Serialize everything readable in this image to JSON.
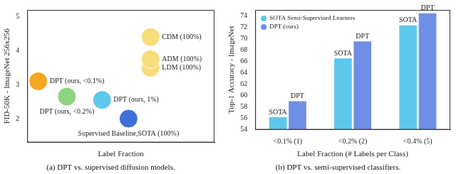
{
  "chart_data": [
    {
      "type": "scatter",
      "caption": "(a) DPT vs. supervised diffusion models.",
      "x_label": "Label Fraction",
      "y_label": "FID-50K - ImageNet 256x256",
      "x": [
        0.5,
        1.8,
        3.4,
        4.6,
        5.6,
        5.6,
        5.6
      ],
      "values": [
        3.1,
        2.65,
        2.55,
        2.0,
        3.5,
        3.75,
        4.4
      ],
      "annotations": [
        "DPT (ours, <0.1%)",
        "DPT (ours, <0.2%)",
        "DPT (ours, 1%)",
        "Supervised Baseline,SOTA (100%)",
        "LDM (100%)",
        "ADM (100%)",
        "CDM (100%)"
      ],
      "colors": [
        "#f5a623",
        "#8ed47f",
        "#5cc9ec",
        "#3f6fd8",
        "#f9dc7a",
        "#f9dc7a",
        "#f9dc7a"
      ],
      "marker": "circle",
      "xlim": [
        0,
        8.5
      ],
      "ylim": [
        1.3,
        5.2
      ],
      "yticks": [
        2,
        3,
        4,
        5
      ],
      "tick_labels": "y",
      "grid": false
    },
    {
      "type": "bar",
      "caption": "(b) DPT vs. semi-supervised classifiers.",
      "x_label": "Label Fraction (# Labels per Class)",
      "y_label": "Top-1 Accuracy - ImageNet",
      "categories": [
        "<0.1% (1)",
        "<0.2% (2)",
        "<0.4% (5)"
      ],
      "series": [
        {
          "name": "SOTA Semi-Supervised Learners",
          "color": "#5cc9ec",
          "values": [
            56.2,
            66.5,
            72.3
          ],
          "annotation": "SOTA"
        },
        {
          "name": "DPT (ours)",
          "color": "#6f8fe6",
          "values": [
            59.0,
            69.5,
            74.4
          ],
          "annotation": "DPT"
        }
      ],
      "ylim": [
        54,
        75
      ],
      "yticks": [
        54,
        56,
        58,
        60,
        62,
        64,
        66,
        68,
        70,
        72,
        74
      ],
      "legend": "upper left",
      "grid": false
    }
  ]
}
